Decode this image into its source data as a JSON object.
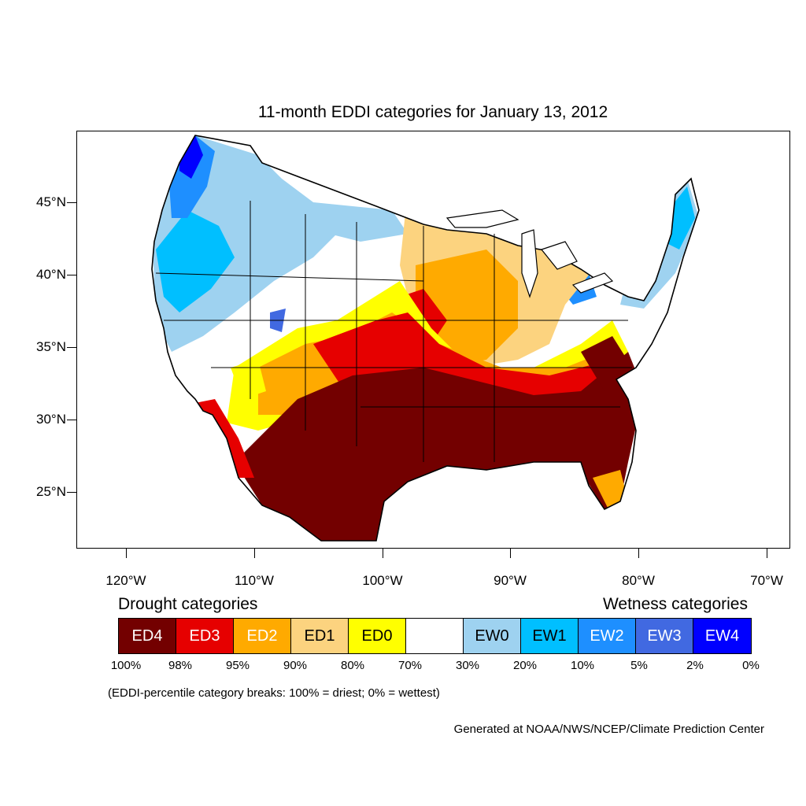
{
  "title": "11-month EDDI categories for January 13, 2012",
  "latitude_labels": [
    "45°N",
    "40°N",
    "35°N",
    "30°N",
    "25°N"
  ],
  "longitude_labels": [
    "120°W",
    "110°W",
    "100°W",
    "90°W",
    "80°W",
    "70°W"
  ],
  "drought_heading": "Drought categories",
  "wetness_heading": "Wetness categories",
  "legend": [
    {
      "label": "ED4",
      "color": "#730000",
      "text_color": "#ffffff"
    },
    {
      "label": "ED3",
      "color": "#e60000",
      "text_color": "#ffffff"
    },
    {
      "label": "ED2",
      "color": "#ffaa00",
      "text_color": "#ffffff"
    },
    {
      "label": "ED1",
      "color": "#fcd37f",
      "text_color": "#000000"
    },
    {
      "label": "ED0",
      "color": "#ffff00",
      "text_color": "#000000"
    },
    {
      "label": "",
      "color": "#ffffff",
      "text_color": "#000000"
    },
    {
      "label": "EW0",
      "color": "#9ed2f0",
      "text_color": "#000000"
    },
    {
      "label": "EW1",
      "color": "#00bfff",
      "text_color": "#000000"
    },
    {
      "label": "EW2",
      "color": "#1e8fff",
      "text_color": "#ffffff"
    },
    {
      "label": "EW3",
      "color": "#4169e1",
      "text_color": "#ffffff"
    },
    {
      "label": "EW4",
      "color": "#0000ff",
      "text_color": "#ffffff"
    }
  ],
  "percentile_breaks": [
    "100%",
    "98%",
    "95%",
    "90%",
    "80%",
    "70%",
    "30%",
    "20%",
    "10%",
    "5%",
    "2%",
    "0%"
  ],
  "note": "(EDDI-percentile category breaks: 100% = driest; 0% = wettest)",
  "credit": "Generated at NOAA/NWS/NCEP/Climate Prediction Center"
}
